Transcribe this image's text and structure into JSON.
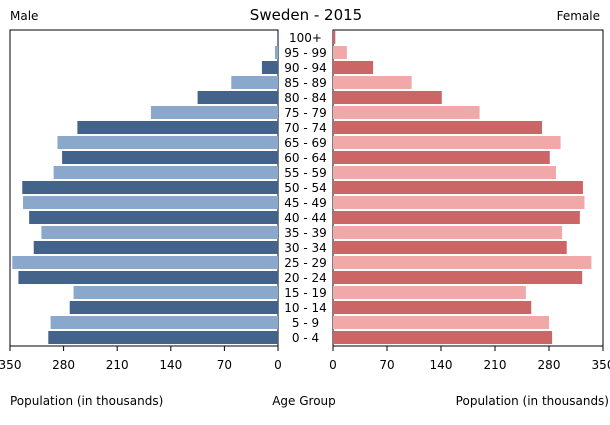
{
  "chart_data": {
    "type": "bar",
    "title": "Sweden - 2015",
    "left_label": "Male",
    "right_label": "Female",
    "center_xlabel": "Age Group",
    "xlabel_left": "Population (in thousands)",
    "xlabel_right": "Population (in thousands)",
    "xlim": [
      0,
      350
    ],
    "x_ticks": [
      0,
      70,
      140,
      210,
      280,
      350
    ],
    "categories": [
      "0 - 4",
      "5 - 9",
      "10 - 14",
      "15 - 19",
      "20 - 24",
      "25 - 29",
      "30 - 34",
      "35 - 39",
      "40 - 44",
      "45 - 49",
      "50 - 54",
      "55 - 59",
      "60 - 64",
      "65 - 69",
      "70 - 74",
      "75 - 79",
      "80 - 84",
      "85 - 89",
      "90 - 94",
      "95 - 99",
      "100+"
    ],
    "series": [
      {
        "name": "Male",
        "values": [
          300,
          297,
          272,
          267,
          339,
          347,
          319,
          309,
          325,
          333,
          334,
          293,
          282,
          288,
          262,
          166,
          105,
          61,
          21,
          4,
          1
        ],
        "colors": [
          "#44638a",
          "#89a8cc"
        ]
      },
      {
        "name": "Female",
        "values": [
          284,
          280,
          257,
          250,
          323,
          335,
          303,
          297,
          320,
          326,
          324,
          289,
          281,
          295,
          271,
          190,
          141,
          102,
          52,
          18,
          3
        ],
        "colors": [
          "#cc6666",
          "#f0a8a8"
        ]
      }
    ]
  }
}
